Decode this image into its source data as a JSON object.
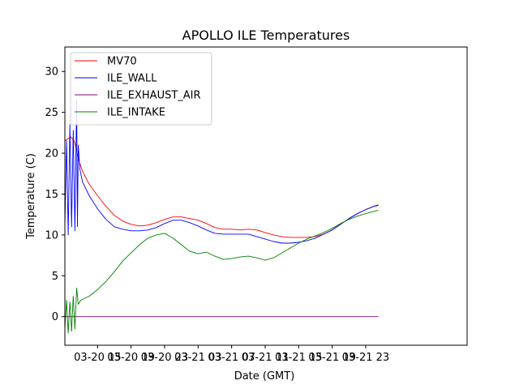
{
  "chart_data": {
    "type": "line",
    "title": "APOLLO ILE Temperatures",
    "xlabel": "Date (GMT)",
    "ylabel": "Temperature (C)",
    "xlim": [
      11.1,
      59.1
    ],
    "ylim": [
      -3.5,
      33
    ],
    "x_unit": "hours since 2017-03-20 00:00 GMT",
    "x_ticks": [
      {
        "value": 15,
        "label": "03-20 15"
      },
      {
        "value": 19,
        "label": "03-20 19"
      },
      {
        "value": 23,
        "label": "03-20 23"
      },
      {
        "value": 27,
        "label": "03-21 03"
      },
      {
        "value": 31,
        "label": "03-21 07"
      },
      {
        "value": 35,
        "label": "03-21 11"
      },
      {
        "value": 39,
        "label": "03-21 15"
      },
      {
        "value": 43,
        "label": "03-21 19"
      },
      {
        "value": 47,
        "label": "03-21 23"
      }
    ],
    "y_ticks": [
      0,
      5,
      10,
      15,
      20,
      25,
      30
    ],
    "legend_position": "top-left",
    "series": [
      {
        "name": "MV70",
        "color": "#ff0000",
        "points": [
          [
            11.1,
            21.5
          ],
          [
            11.8,
            22.0
          ],
          [
            12.2,
            21.5
          ],
          [
            12.5,
            20.3
          ],
          [
            12.8,
            19.0
          ],
          [
            13.2,
            17.8
          ],
          [
            14.0,
            16.2
          ],
          [
            15.0,
            14.8
          ],
          [
            16.0,
            13.5
          ],
          [
            17.0,
            12.4
          ],
          [
            18.0,
            11.7
          ],
          [
            19.0,
            11.3
          ],
          [
            20.0,
            11.1
          ],
          [
            21.0,
            11.2
          ],
          [
            22.0,
            11.5
          ],
          [
            23.0,
            11.9
          ],
          [
            24.0,
            12.2
          ],
          [
            25.0,
            12.2
          ],
          [
            26.0,
            12.0
          ],
          [
            27.0,
            11.8
          ],
          [
            28.0,
            11.4
          ],
          [
            29.0,
            10.9
          ],
          [
            30.0,
            10.7
          ],
          [
            31.0,
            10.7
          ],
          [
            32.0,
            10.6
          ],
          [
            33.0,
            10.7
          ],
          [
            34.0,
            10.6
          ],
          [
            35.0,
            10.3
          ],
          [
            36.0,
            10.0
          ],
          [
            37.0,
            9.8
          ],
          [
            38.0,
            9.7
          ],
          [
            39.0,
            9.7
          ],
          [
            40.0,
            9.7
          ],
          [
            41.0,
            9.8
          ],
          [
            42.0,
            10.1
          ],
          [
            43.0,
            10.6
          ],
          [
            44.0,
            11.3
          ],
          [
            45.0,
            12.0
          ],
          [
            46.0,
            12.6
          ],
          [
            47.0,
            13.1
          ],
          [
            48.0,
            13.5
          ],
          [
            48.5,
            13.7
          ]
        ]
      },
      {
        "name": "ILE_WALL",
        "color": "#0000ff",
        "points": [
          [
            11.1,
            11.0
          ],
          [
            11.3,
            21.5
          ],
          [
            11.5,
            10.0
          ],
          [
            11.7,
            23.5
          ],
          [
            11.9,
            11.0
          ],
          [
            12.1,
            22.8
          ],
          [
            12.3,
            10.5
          ],
          [
            12.5,
            26.5
          ],
          [
            12.6,
            11.0
          ],
          [
            12.7,
            21.0
          ],
          [
            12.9,
            18.0
          ],
          [
            13.2,
            16.5
          ],
          [
            14.0,
            14.8
          ],
          [
            15.0,
            13.2
          ],
          [
            16.0,
            11.9
          ],
          [
            17.0,
            11.0
          ],
          [
            18.0,
            10.7
          ],
          [
            19.0,
            10.5
          ],
          [
            20.0,
            10.5
          ],
          [
            21.0,
            10.6
          ],
          [
            22.0,
            10.9
          ],
          [
            23.0,
            11.4
          ],
          [
            24.0,
            11.8
          ],
          [
            25.0,
            11.8
          ],
          [
            26.0,
            11.5
          ],
          [
            27.0,
            11.1
          ],
          [
            28.0,
            10.6
          ],
          [
            29.0,
            10.2
          ],
          [
            30.0,
            10.1
          ],
          [
            31.0,
            10.1
          ],
          [
            32.0,
            10.1
          ],
          [
            33.0,
            10.1
          ],
          [
            34.0,
            9.8
          ],
          [
            35.0,
            9.5
          ],
          [
            36.0,
            9.2
          ],
          [
            37.0,
            9.0
          ],
          [
            38.0,
            9.0
          ],
          [
            39.0,
            9.1
          ],
          [
            40.0,
            9.3
          ],
          [
            41.0,
            9.6
          ],
          [
            42.0,
            10.1
          ],
          [
            43.0,
            10.6
          ],
          [
            44.0,
            11.3
          ],
          [
            45.0,
            12.0
          ],
          [
            46.0,
            12.6
          ],
          [
            47.0,
            13.1
          ],
          [
            48.0,
            13.5
          ],
          [
            48.5,
            13.6
          ]
        ]
      },
      {
        "name": "ILE_EXHAUST_AIR",
        "color": "#800080",
        "points": [
          [
            11.1,
            0.0
          ],
          [
            48.5,
            0.0
          ]
        ]
      },
      {
        "name": "ILE_INTAKE",
        "color": "#008000",
        "points": [
          [
            11.1,
            -1.5
          ],
          [
            11.3,
            2.0
          ],
          [
            11.5,
            -2.0
          ],
          [
            11.7,
            1.8
          ],
          [
            11.9,
            -1.8
          ],
          [
            12.1,
            2.5
          ],
          [
            12.3,
            -1.5
          ],
          [
            12.5,
            3.5
          ],
          [
            12.7,
            1.5
          ],
          [
            13.0,
            2.0
          ],
          [
            14.0,
            2.5
          ],
          [
            15.0,
            3.3
          ],
          [
            16.0,
            4.3
          ],
          [
            17.0,
            5.5
          ],
          [
            18.0,
            6.8
          ],
          [
            19.0,
            7.8
          ],
          [
            20.0,
            8.8
          ],
          [
            21.0,
            9.6
          ],
          [
            22.0,
            10.0
          ],
          [
            23.0,
            10.2
          ],
          [
            24.0,
            9.6
          ],
          [
            25.0,
            8.8
          ],
          [
            26.0,
            8.0
          ],
          [
            27.0,
            7.7
          ],
          [
            28.0,
            7.9
          ],
          [
            29.0,
            7.4
          ],
          [
            30.0,
            7.0
          ],
          [
            31.0,
            7.1
          ],
          [
            32.0,
            7.3
          ],
          [
            33.0,
            7.4
          ],
          [
            34.0,
            7.2
          ],
          [
            35.0,
            6.9
          ],
          [
            36.0,
            7.2
          ],
          [
            37.0,
            7.8
          ],
          [
            38.0,
            8.4
          ],
          [
            39.0,
            9.0
          ],
          [
            40.0,
            9.5
          ],
          [
            41.0,
            9.9
          ],
          [
            42.0,
            10.3
          ],
          [
            43.0,
            10.8
          ],
          [
            44.0,
            11.4
          ],
          [
            45.0,
            11.9
          ],
          [
            46.0,
            12.3
          ],
          [
            47.0,
            12.6
          ],
          [
            48.0,
            12.9
          ],
          [
            48.5,
            13.0
          ]
        ]
      }
    ]
  }
}
